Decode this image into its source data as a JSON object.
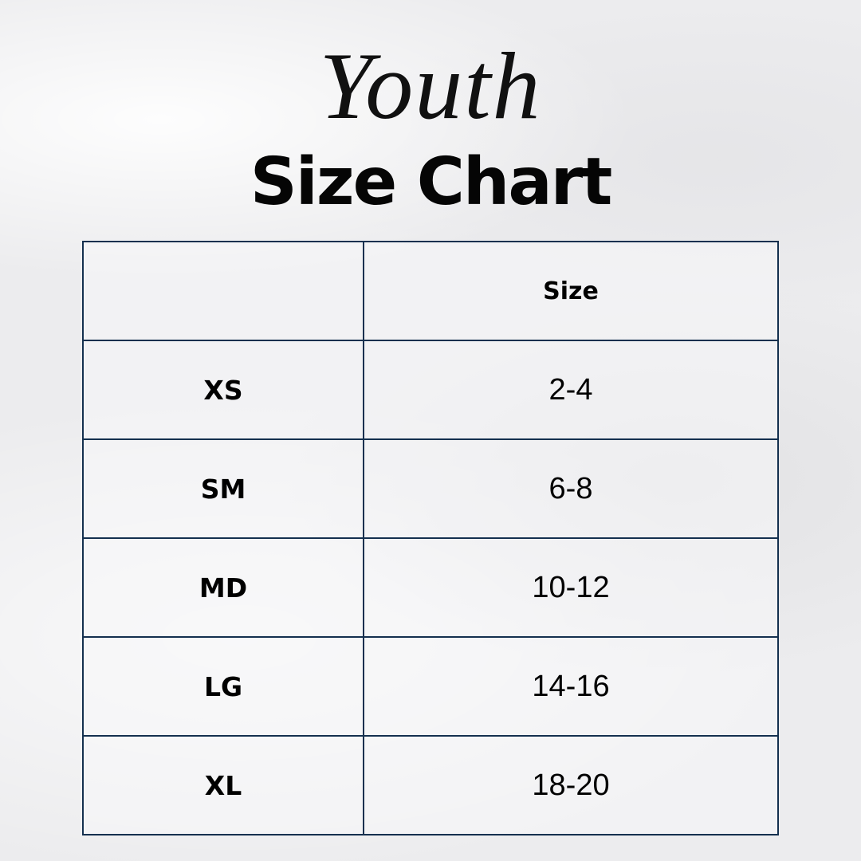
{
  "heading": {
    "script": "Youth",
    "title": "Size Chart"
  },
  "colors": {
    "border": "#14304f",
    "text": "#000000"
  },
  "table": {
    "headers": [
      "",
      "Size"
    ],
    "rows": [
      [
        "XS",
        "2-4"
      ],
      [
        "SM",
        "6-8"
      ],
      [
        "MD",
        "10-12"
      ],
      [
        "LG",
        "14-16"
      ],
      [
        "XL",
        "18-20"
      ]
    ]
  }
}
